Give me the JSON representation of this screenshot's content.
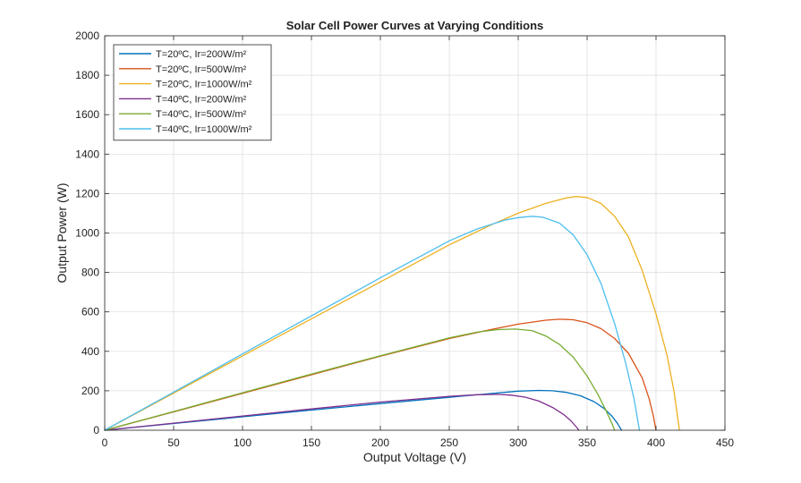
{
  "chart_data": {
    "type": "line",
    "title": "Solar Cell Power Curves at Varying Conditions",
    "xlabel": "Output Voltage (V)",
    "ylabel": "Output Power (W)",
    "xlim": [
      0,
      450
    ],
    "ylim": [
      0,
      2000
    ],
    "xticks": [
      0,
      50,
      100,
      150,
      200,
      250,
      300,
      350,
      400,
      450
    ],
    "yticks": [
      0,
      200,
      400,
      600,
      800,
      1000,
      1200,
      1400,
      1600,
      1800,
      2000
    ],
    "grid": true,
    "legend_position": "top-left",
    "series": [
      {
        "name": "T=20ºC,  Ir=200W/m²",
        "color": "#0072BD",
        "x": [
          0,
          50,
          100,
          150,
          200,
          250,
          280,
          300,
          315,
          325,
          335,
          345,
          355,
          362,
          368,
          372,
          375
        ],
        "y": [
          0,
          34,
          68,
          102,
          135,
          167,
          186,
          198,
          202,
          200,
          192,
          175,
          145,
          112,
          72,
          35,
          0
        ]
      },
      {
        "name": "T=20ºC,  Ir=500W/m²",
        "color": "#D95319",
        "x": [
          0,
          50,
          100,
          150,
          200,
          250,
          280,
          300,
          320,
          330,
          340,
          350,
          360,
          370,
          380,
          390,
          395,
          398,
          400
        ],
        "y": [
          0,
          93,
          187,
          281,
          375,
          465,
          510,
          538,
          558,
          563,
          560,
          545,
          515,
          465,
          390,
          265,
          160,
          75,
          0
        ]
      },
      {
        "name": "T=20ºC,  Ir=1000W/m²",
        "color": "#EDB120",
        "x": [
          0,
          50,
          100,
          150,
          200,
          250,
          280,
          300,
          320,
          335,
          342,
          350,
          360,
          370,
          380,
          390,
          400,
          408,
          413,
          417
        ],
        "y": [
          0,
          188,
          377,
          565,
          752,
          940,
          1040,
          1100,
          1150,
          1178,
          1185,
          1180,
          1150,
          1085,
          980,
          810,
          590,
          380,
          200,
          0
        ]
      },
      {
        "name": "T=40ºC,  Ir=200W/m²",
        "color": "#7E2F8E",
        "x": [
          0,
          50,
          100,
          150,
          200,
          250,
          270,
          285,
          295,
          305,
          315,
          325,
          333,
          338,
          342,
          344
        ],
        "y": [
          0,
          36,
          72,
          108,
          143,
          172,
          180,
          182,
          178,
          168,
          148,
          115,
          80,
          50,
          18,
          0
        ]
      },
      {
        "name": "T=40ºC,  Ir=500W/m²",
        "color": "#77AC30",
        "x": [
          0,
          50,
          100,
          150,
          200,
          250,
          270,
          285,
          298,
          310,
          320,
          330,
          340,
          350,
          358,
          364,
          368,
          370
        ],
        "y": [
          0,
          95,
          190,
          285,
          378,
          468,
          497,
          510,
          513,
          505,
          478,
          435,
          370,
          275,
          180,
          95,
          35,
          0
        ]
      },
      {
        "name": "T=40ºC,  Ir=1000W/m²",
        "color": "#4DBEEE",
        "x": [
          0,
          50,
          100,
          150,
          200,
          250,
          270,
          290,
          300,
          310,
          318,
          330,
          340,
          350,
          360,
          370,
          378,
          384,
          388
        ],
        "y": [
          0,
          193,
          387,
          580,
          773,
          960,
          1020,
          1065,
          1078,
          1085,
          1080,
          1050,
          990,
          890,
          745,
          540,
          340,
          160,
          0
        ]
      }
    ]
  }
}
